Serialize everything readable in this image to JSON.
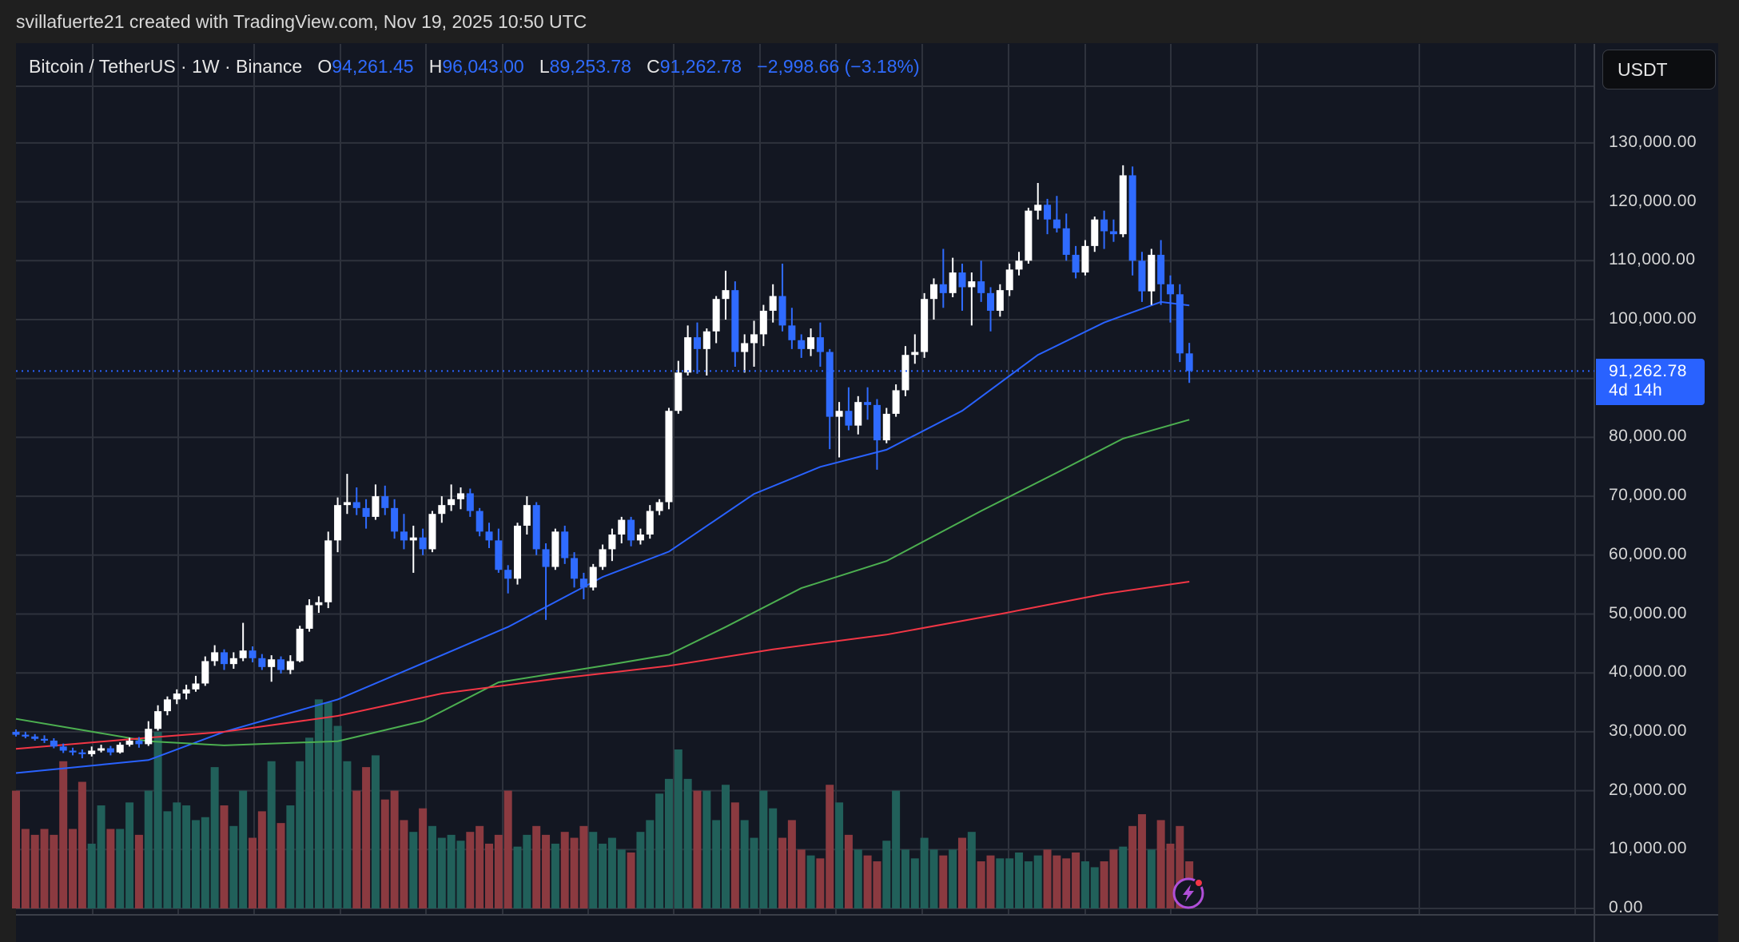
{
  "credit": "svillafuerte21 created with TradingView.com, Nov 19, 2025 10:50 UTC",
  "legend": {
    "symbol": "Bitcoin / TetherUS · 1W · Binance",
    "o_label": "O",
    "o": "94,261.45",
    "h_label": "H",
    "h": "96,043.00",
    "l_label": "L",
    "l": "89,253.78",
    "c_label": "C",
    "c": "91,262.78",
    "change": "−2,998.66 (−3.18%)"
  },
  "currency": "USDT",
  "last_price": {
    "price": "91,262.78",
    "countdown": "4d 14h"
  },
  "colors": {
    "up": "#ffffff",
    "down": "#2f6bff",
    "vol_up": "#21605a",
    "vol_down": "#8b3a40",
    "ma_blue": "#2962ff",
    "ma_green": "#4caf50",
    "ma_red": "#f23645",
    "background": "#131722"
  },
  "icons": [
    "lightning-icon"
  ],
  "chart_data": {
    "type": "candlestick",
    "title": "Bitcoin / TetherUS · 1W · Binance",
    "ylim": [
      0,
      140000
    ],
    "yticks": [
      "0.00",
      "10,000.00",
      "20,000.00",
      "30,000.00",
      "40,000.00",
      "50,000.00",
      "60,000.00",
      "70,000.00",
      "80,000.00",
      "100,000.00",
      "110,000.00",
      "120,000.00",
      "130,000.00"
    ],
    "grid": true,
    "ohlc": [
      [
        30000,
        30400,
        29200,
        29500
      ],
      [
        29500,
        30000,
        28900,
        29200
      ],
      [
        29200,
        29600,
        28500,
        28800
      ],
      [
        28800,
        29400,
        28100,
        28500
      ],
      [
        28500,
        28900,
        27200,
        27500
      ],
      [
        27500,
        28000,
        26400,
        26800
      ],
      [
        26800,
        27300,
        26000,
        26500
      ],
      [
        26500,
        27000,
        25500,
        26200
      ],
      [
        26200,
        27500,
        25800,
        26800
      ],
      [
        26800,
        27800,
        26500,
        27200
      ],
      [
        27200,
        27600,
        26000,
        26500
      ],
      [
        26500,
        28200,
        26300,
        27800
      ],
      [
        27800,
        29000,
        27500,
        28500
      ],
      [
        28500,
        29100,
        27300,
        27900
      ],
      [
        27900,
        31800,
        27600,
        30500
      ],
      [
        30500,
        34500,
        30200,
        33500
      ],
      [
        33500,
        36000,
        32800,
        35500
      ],
      [
        35500,
        37200,
        34700,
        36500
      ],
      [
        36500,
        38000,
        35500,
        37200
      ],
      [
        37200,
        39500,
        36800,
        38200
      ],
      [
        38200,
        42800,
        37800,
        42000
      ],
      [
        42000,
        44700,
        41200,
        43500
      ],
      [
        43500,
        44000,
        40500,
        41500
      ],
      [
        41500,
        43500,
        40700,
        42500
      ],
      [
        42500,
        48500,
        42000,
        43800
      ],
      [
        43800,
        44500,
        41800,
        42500
      ],
      [
        42500,
        43200,
        40500,
        41000
      ],
      [
        41000,
        43000,
        38500,
        42300
      ],
      [
        42300,
        42800,
        39900,
        40500
      ],
      [
        40500,
        43000,
        39800,
        42000
      ],
      [
        42000,
        48000,
        41800,
        47500
      ],
      [
        47500,
        52500,
        47000,
        51500
      ],
      [
        51500,
        53000,
        50200,
        52000
      ],
      [
        52000,
        64000,
        51000,
        62500
      ],
      [
        62500,
        69800,
        60500,
        68500
      ],
      [
        68500,
        73800,
        67000,
        69000
      ],
      [
        69000,
        71500,
        66800,
        68000
      ],
      [
        68000,
        69500,
        64500,
        66500
      ],
      [
        66500,
        72000,
        66000,
        70000
      ],
      [
        70000,
        71800,
        66800,
        68000
      ],
      [
        68000,
        69500,
        62800,
        64000
      ],
      [
        64000,
        67000,
        61000,
        62500
      ],
      [
        62500,
        65000,
        57000,
        63000
      ],
      [
        63000,
        64500,
        60000,
        61000
      ],
      [
        61000,
        67500,
        60500,
        67000
      ],
      [
        67000,
        70000,
        65500,
        68500
      ],
      [
        68500,
        72000,
        67500,
        69500
      ],
      [
        69500,
        71500,
        67800,
        70500
      ],
      [
        70500,
        71300,
        66500,
        67500
      ],
      [
        67500,
        68000,
        63200,
        64000
      ],
      [
        64000,
        65500,
        61200,
        62500
      ],
      [
        62500,
        64500,
        57000,
        57500
      ],
      [
        57500,
        58300,
        53500,
        56000
      ],
      [
        56000,
        65500,
        55000,
        65000
      ],
      [
        65000,
        70000,
        63500,
        68500
      ],
      [
        68500,
        69000,
        60000,
        61000
      ],
      [
        61000,
        62000,
        49000,
        58000
      ],
      [
        58000,
        64500,
        57500,
        64000
      ],
      [
        64000,
        65000,
        58500,
        59500
      ],
      [
        59500,
        60500,
        54500,
        56000
      ],
      [
        56000,
        57000,
        52500,
        54500
      ],
      [
        54500,
        58500,
        54000,
        58000
      ],
      [
        58000,
        61800,
        57500,
        61000
      ],
      [
        61000,
        64500,
        59000,
        63500
      ],
      [
        63500,
        66500,
        62000,
        66000
      ],
      [
        66000,
        66500,
        61500,
        62500
      ],
      [
        62500,
        64500,
        61800,
        63500
      ],
      [
        63500,
        68500,
        62800,
        67500
      ],
      [
        67500,
        69500,
        66800,
        69000
      ],
      [
        69000,
        85000,
        67800,
        84500
      ],
      [
        84500,
        93000,
        84000,
        91000
      ],
      [
        91000,
        99000,
        90500,
        97000
      ],
      [
        97000,
        99500,
        90800,
        95000
      ],
      [
        95000,
        98500,
        90500,
        98000
      ],
      [
        98000,
        104000,
        96000,
        103500
      ],
      [
        103500,
        108300,
        100000,
        105000
      ],
      [
        105000,
        106500,
        92000,
        94500
      ],
      [
        94500,
        97500,
        91000,
        96000
      ],
      [
        96000,
        99800,
        92000,
        97500
      ],
      [
        97500,
        102500,
        95500,
        101500
      ],
      [
        101500,
        106000,
        99500,
        104000
      ],
      [
        104000,
        109500,
        98000,
        99000
      ],
      [
        99000,
        102000,
        95000,
        96500
      ],
      [
        96500,
        97500,
        93500,
        95000
      ],
      [
        95000,
        98500,
        93800,
        97000
      ],
      [
        97000,
        99500,
        92000,
        94500
      ],
      [
        94500,
        95000,
        78000,
        83500
      ],
      [
        83500,
        86000,
        76600,
        84500
      ],
      [
        84500,
        88500,
        81200,
        82000
      ],
      [
        82000,
        87000,
        80500,
        86000
      ],
      [
        86000,
        88500,
        83000,
        85500
      ],
      [
        85500,
        86500,
        74500,
        79500
      ],
      [
        79500,
        85000,
        79000,
        84000
      ],
      [
        84000,
        89000,
        83500,
        88000
      ],
      [
        88000,
        95500,
        87000,
        94000
      ],
      [
        94000,
        97500,
        92500,
        94500
      ],
      [
        94500,
        104500,
        93500,
        103500
      ],
      [
        103500,
        107000,
        100000,
        106000
      ],
      [
        106000,
        112000,
        102000,
        104500
      ],
      [
        104500,
        110500,
        103800,
        108000
      ],
      [
        108000,
        109500,
        101500,
        105500
      ],
      [
        105500,
        108000,
        99000,
        106500
      ],
      [
        106500,
        110000,
        103000,
        104500
      ],
      [
        104500,
        105500,
        98000,
        101500
      ],
      [
        101500,
        106000,
        100500,
        105000
      ],
      [
        105000,
        109500,
        104000,
        108500
      ],
      [
        108500,
        111500,
        107500,
        110000
      ],
      [
        110000,
        119000,
        109500,
        118500
      ],
      [
        118500,
        123200,
        117000,
        119500
      ],
      [
        119500,
        120500,
        114500,
        117000
      ],
      [
        117000,
        121000,
        114800,
        115500
      ],
      [
        115500,
        118000,
        110000,
        111000
      ],
      [
        111000,
        112500,
        107000,
        108000
      ],
      [
        108000,
        113500,
        107500,
        112500
      ],
      [
        112500,
        117500,
        111500,
        117000
      ],
      [
        117000,
        118500,
        112000,
        115000
      ],
      [
        115000,
        117000,
        113200,
        114500
      ],
      [
        114500,
        126200,
        114000,
        124500
      ],
      [
        124500,
        126000,
        107500,
        110000
      ],
      [
        110000,
        111500,
        103000,
        104800
      ],
      [
        104800,
        112000,
        102500,
        111000
      ],
      [
        111000,
        113500,
        102500,
        106000
      ],
      [
        106000,
        107500,
        99500,
        104300
      ],
      [
        104300,
        106000,
        92800,
        94261.45
      ],
      [
        94261.45,
        96043,
        89253.78,
        91262.78
      ]
    ],
    "volume": [
      20,
      13.5,
      12.5,
      13.5,
      12.5,
      25,
      13.5,
      21.5,
      11,
      17.5,
      13.5,
      13.5,
      18,
      12.5,
      20,
      30,
      16.5,
      18,
      17.5,
      15,
      15.5,
      24,
      17.5,
      14,
      20,
      12,
      16.5,
      25,
      14.5,
      17.5,
      25,
      29,
      35.5,
      35,
      31,
      25,
      20,
      24,
      26,
      18.5,
      20,
      15,
      13,
      17,
      14,
      12,
      12.5,
      11.5,
      13,
      14,
      11,
      12.5,
      20,
      10.5,
      12.5,
      14,
      12.5,
      11,
      13,
      12,
      14,
      13,
      11,
      12,
      10,
      9.5,
      13,
      15,
      19.5,
      22,
      27,
      22,
      20,
      20,
      15,
      21,
      18,
      15,
      12,
      20,
      17,
      12,
      15,
      10,
      9,
      8.5,
      21,
      18,
      12.5,
      10,
      9,
      8,
      11.5,
      20,
      10,
      8.5,
      12,
      10,
      9,
      10,
      12,
      13,
      8,
      9,
      8.5,
      8.5,
      9.5,
      8,
      9,
      10,
      9,
      8.5,
      9.5,
      8,
      7,
      8,
      10,
      10.5,
      14,
      16,
      10,
      15,
      11,
      14,
      8
    ],
    "moving_averages": [
      {
        "color": "#2962ff",
        "points": [
          [
            0,
            23000
          ],
          [
            14,
            25200
          ],
          [
            22,
            30000
          ],
          [
            34,
            35500
          ],
          [
            45,
            43000
          ],
          [
            52,
            47800
          ],
          [
            62,
            56300
          ],
          [
            69,
            60600
          ],
          [
            78,
            70400
          ],
          [
            85,
            75000
          ],
          [
            92,
            77900
          ],
          [
            100,
            84500
          ],
          [
            108,
            94000
          ],
          [
            115,
            99500
          ],
          [
            121,
            103000
          ],
          [
            124,
            102400
          ]
        ]
      },
      {
        "color": "#4caf50",
        "points": [
          [
            0,
            32200
          ],
          [
            14,
            28400
          ],
          [
            22,
            27700
          ],
          [
            34,
            28400
          ],
          [
            43,
            31800
          ],
          [
            51,
            38400
          ],
          [
            62,
            41200
          ],
          [
            69,
            43100
          ],
          [
            75,
            47800
          ],
          [
            83,
            54400
          ],
          [
            92,
            59000
          ],
          [
            102,
            67500
          ],
          [
            110,
            74000
          ],
          [
            117,
            79800
          ],
          [
            124,
            83000
          ]
        ]
      },
      {
        "color": "#f23645",
        "points": [
          [
            0,
            27100
          ],
          [
            14,
            29000
          ],
          [
            22,
            30000
          ],
          [
            34,
            32700
          ],
          [
            45,
            36500
          ],
          [
            57,
            39000
          ],
          [
            69,
            41200
          ],
          [
            80,
            44000
          ],
          [
            92,
            46500
          ],
          [
            104,
            50000
          ],
          [
            115,
            53400
          ],
          [
            124,
            55500
          ]
        ]
      }
    ]
  }
}
